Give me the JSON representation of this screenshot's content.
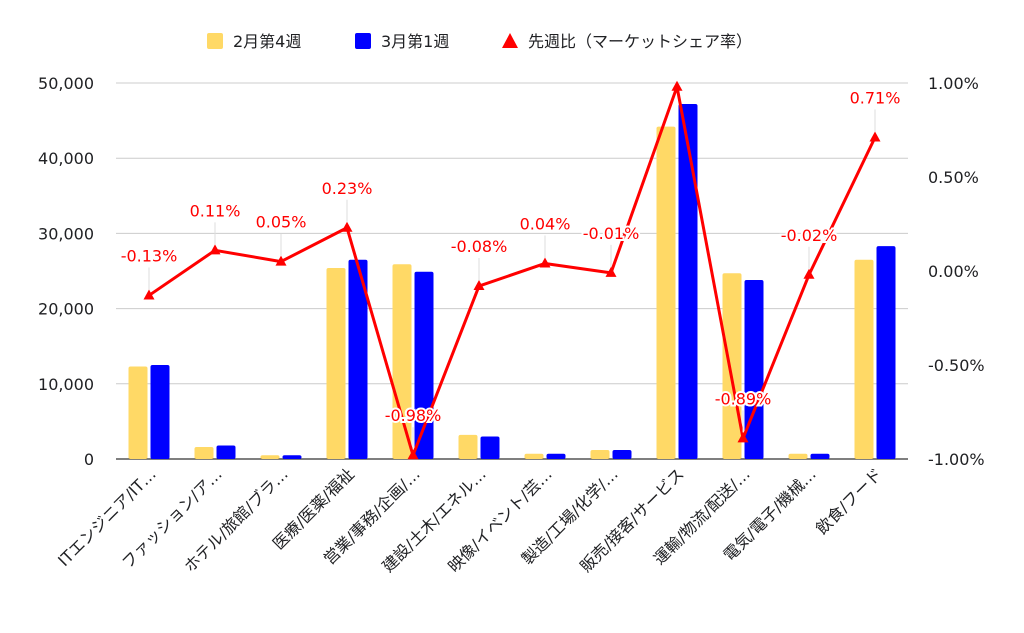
{
  "chart_data": {
    "type": "bar",
    "categories": [
      "ITエンジニア/IT…",
      "ファッション/ア…",
      "ホテル/旅館/ブラ…",
      "医療/医薬/福祉",
      "営業/事務/企画/…",
      "建設/土木/エネル…",
      "映像/イベント/芸…",
      "製造/工場/化学/…",
      "販売/接客/サービス",
      "運輸/物流/配送/…",
      "電気/電子/機械…",
      "飲食/フード"
    ],
    "series": [
      {
        "name": "2月第4週",
        "type": "bar",
        "axis": "left",
        "color": "#ffd966",
        "values": [
          12300,
          1600,
          500,
          25400,
          25900,
          3200,
          700,
          1200,
          44200,
          24700,
          700,
          26500
        ]
      },
      {
        "name": "3月第1週",
        "type": "bar",
        "axis": "left",
        "color": "#0000ff",
        "values": [
          12500,
          1800,
          500,
          26500,
          24900,
          3000,
          700,
          1200,
          47200,
          23800,
          700,
          28300
        ]
      },
      {
        "name": "先週比（マーケットシェア率）",
        "type": "line",
        "axis": "right",
        "color": "#ff0000",
        "marker": "triangle",
        "values": [
          -0.13,
          0.11,
          0.05,
          0.23,
          -0.98,
          -0.08,
          0.04,
          -0.01,
          0.98,
          -0.89,
          -0.02,
          0.71
        ],
        "labels": [
          "-0.13%",
          "0.11%",
          "0.05%",
          "0.23%",
          "-0.98%",
          "-0.08%",
          "0.04%",
          "-0.01%",
          "",
          "-0.89%",
          "-0.02%",
          "0.71%"
        ]
      }
    ],
    "y_left": {
      "range": [
        0,
        50000
      ],
      "ticks": [
        0,
        10000,
        20000,
        30000,
        40000,
        50000
      ],
      "tick_labels": [
        "0",
        "10,000",
        "20,000",
        "30,000",
        "40,000",
        "50,000"
      ]
    },
    "y_right": {
      "range": [
        -1.0,
        1.0
      ],
      "ticks": [
        -1.0,
        -0.5,
        0.0,
        0.5,
        1.0
      ],
      "tick_labels": [
        "-1.00%",
        "-0.50%",
        "0.00%",
        "0.50%",
        "1.00%"
      ]
    },
    "grid": true,
    "legend_position": "top",
    "title": "",
    "xlabel": "",
    "ylabel": ""
  }
}
